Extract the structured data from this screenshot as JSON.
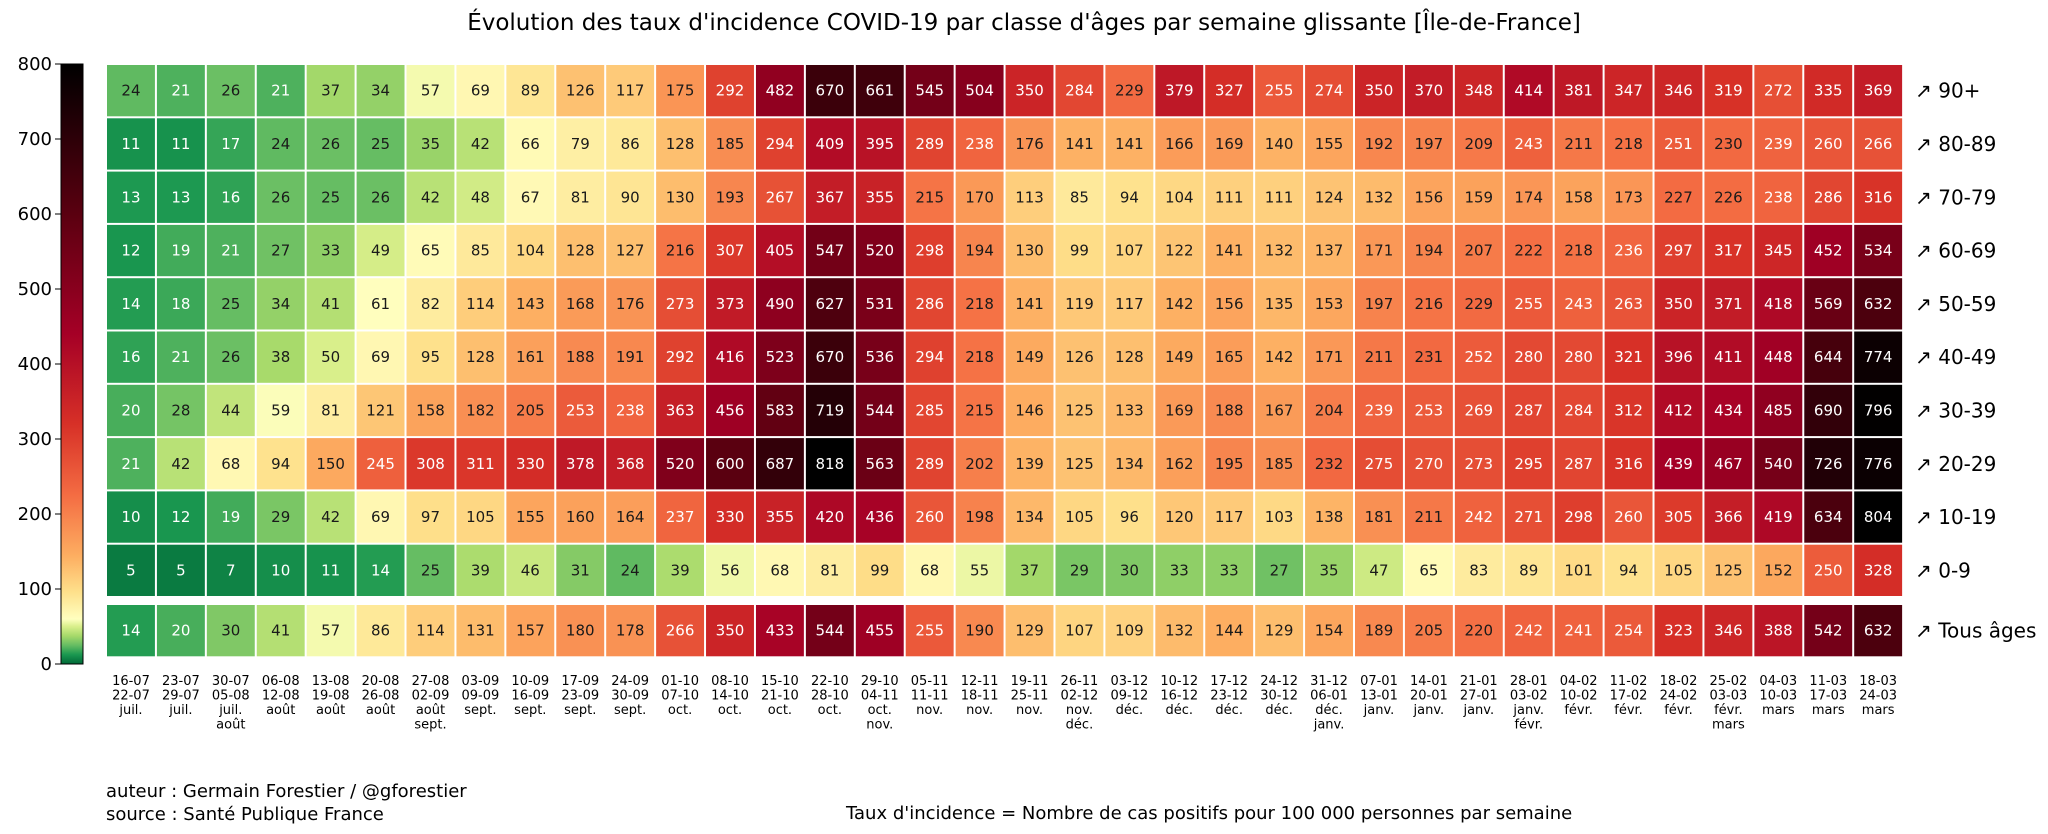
{
  "chart_data": {
    "type": "heatmap",
    "title": "Évolution des taux d'incidence COVID-19 par classe d'âges par semaine glissante [Île-de-France]",
    "colorbar": {
      "min": 0,
      "max": 800,
      "ticks": [
        "0",
        "100",
        "200",
        "300",
        "400",
        "500",
        "600",
        "700",
        "800"
      ]
    },
    "columns": [
      [
        "16-07",
        "22-07",
        "juil."
      ],
      [
        "23-07",
        "29-07",
        "juil."
      ],
      [
        "30-07",
        "05-08",
        "juil.",
        "août"
      ],
      [
        "06-08",
        "12-08",
        "août"
      ],
      [
        "13-08",
        "19-08",
        "août"
      ],
      [
        "20-08",
        "26-08",
        "août"
      ],
      [
        "27-08",
        "02-09",
        "août",
        "sept."
      ],
      [
        "03-09",
        "09-09",
        "sept."
      ],
      [
        "10-09",
        "16-09",
        "sept."
      ],
      [
        "17-09",
        "23-09",
        "sept."
      ],
      [
        "24-09",
        "30-09",
        "sept."
      ],
      [
        "01-10",
        "07-10",
        "oct."
      ],
      [
        "08-10",
        "14-10",
        "oct."
      ],
      [
        "15-10",
        "21-10",
        "oct."
      ],
      [
        "22-10",
        "28-10",
        "oct."
      ],
      [
        "29-10",
        "04-11",
        "oct.",
        "nov."
      ],
      [
        "05-11",
        "11-11",
        "nov."
      ],
      [
        "12-11",
        "18-11",
        "nov."
      ],
      [
        "19-11",
        "25-11",
        "nov."
      ],
      [
        "26-11",
        "02-12",
        "nov.",
        "déc."
      ],
      [
        "03-12",
        "09-12",
        "déc."
      ],
      [
        "10-12",
        "16-12",
        "déc."
      ],
      [
        "17-12",
        "23-12",
        "déc."
      ],
      [
        "24-12",
        "30-12",
        "déc."
      ],
      [
        "31-12",
        "06-01",
        "déc.",
        "janv."
      ],
      [
        "07-01",
        "13-01",
        "janv."
      ],
      [
        "14-01",
        "20-01",
        "janv."
      ],
      [
        "21-01",
        "27-01",
        "janv."
      ],
      [
        "28-01",
        "03-02",
        "janv.",
        "févr."
      ],
      [
        "04-02",
        "10-02",
        "févr."
      ],
      [
        "11-02",
        "17-02",
        "févr."
      ],
      [
        "18-02",
        "24-02",
        "févr."
      ],
      [
        "25-02",
        "03-03",
        "févr.",
        "mars"
      ],
      [
        "04-03",
        "10-03",
        "mars"
      ],
      [
        "11-03",
        "17-03",
        "mars"
      ],
      [
        "18-03",
        "24-03",
        "mars"
      ]
    ],
    "rows": [
      {
        "label": "↗ 90+",
        "values": [
          24,
          21,
          26,
          21,
          37,
          34,
          57,
          69,
          89,
          126,
          117,
          175,
          292,
          482,
          670,
          661,
          545,
          504,
          350,
          284,
          229,
          379,
          327,
          255,
          274,
          350,
          370,
          348,
          414,
          381,
          347,
          346,
          319,
          272,
          335,
          369
        ]
      },
      {
        "label": "↗ 80-89",
        "values": [
          11,
          11,
          17,
          24,
          26,
          25,
          35,
          42,
          66,
          79,
          86,
          128,
          185,
          294,
          409,
          395,
          289,
          238,
          176,
          141,
          141,
          166,
          169,
          140,
          155,
          192,
          197,
          209,
          243,
          211,
          218,
          251,
          230,
          239,
          260,
          266
        ]
      },
      {
        "label": "↗ 70-79",
        "values": [
          13,
          13,
          16,
          26,
          25,
          26,
          42,
          48,
          67,
          81,
          90,
          130,
          193,
          267,
          367,
          355,
          215,
          170,
          113,
          85,
          94,
          104,
          111,
          111,
          124,
          132,
          156,
          159,
          174,
          158,
          173,
          227,
          226,
          238,
          286,
          316
        ]
      },
      {
        "label": "↗ 60-69",
        "values": [
          12,
          19,
          21,
          27,
          33,
          49,
          65,
          85,
          104,
          128,
          127,
          216,
          307,
          405,
          547,
          520,
          298,
          194,
          130,
          99,
          107,
          122,
          141,
          132,
          137,
          171,
          194,
          207,
          222,
          218,
          236,
          297,
          317,
          345,
          452,
          534
        ]
      },
      {
        "label": "↗ 50-59",
        "values": [
          14,
          18,
          25,
          34,
          41,
          61,
          82,
          114,
          143,
          168,
          176,
          273,
          373,
          490,
          627,
          531,
          286,
          218,
          141,
          119,
          117,
          142,
          156,
          135,
          153,
          197,
          216,
          229,
          255,
          243,
          263,
          350,
          371,
          418,
          569,
          632
        ]
      },
      {
        "label": "↗ 40-49",
        "values": [
          16,
          21,
          26,
          38,
          50,
          69,
          95,
          128,
          161,
          188,
          191,
          292,
          416,
          523,
          670,
          536,
          294,
          218,
          149,
          126,
          128,
          149,
          165,
          142,
          171,
          211,
          231,
          252,
          280,
          280,
          321,
          396,
          411,
          448,
          644,
          774
        ]
      },
      {
        "label": "↗ 30-39",
        "values": [
          20,
          28,
          44,
          59,
          81,
          121,
          158,
          182,
          205,
          253,
          238,
          363,
          456,
          583,
          719,
          544,
          285,
          215,
          146,
          125,
          133,
          169,
          188,
          167,
          204,
          239,
          253,
          269,
          287,
          284,
          312,
          412,
          434,
          485,
          690,
          796
        ]
      },
      {
        "label": "↗ 20-29",
        "values": [
          21,
          42,
          68,
          94,
          150,
          245,
          308,
          311,
          330,
          378,
          368,
          520,
          600,
          687,
          818,
          563,
          289,
          202,
          139,
          125,
          134,
          162,
          195,
          185,
          232,
          275,
          270,
          273,
          295,
          287,
          316,
          439,
          467,
          540,
          726,
          776
        ]
      },
      {
        "label": "↗ 10-19",
        "values": [
          10,
          12,
          19,
          29,
          42,
          69,
          97,
          105,
          155,
          160,
          164,
          237,
          330,
          355,
          420,
          436,
          260,
          198,
          134,
          105,
          96,
          120,
          117,
          103,
          138,
          181,
          211,
          242,
          271,
          298,
          260,
          305,
          366,
          419,
          634,
          804
        ]
      },
      {
        "label": "↗ 0-9",
        "values": [
          5,
          5,
          7,
          10,
          11,
          14,
          25,
          39,
          46,
          31,
          24,
          39,
          56,
          68,
          81,
          99,
          68,
          55,
          37,
          29,
          30,
          33,
          33,
          27,
          35,
          47,
          65,
          83,
          89,
          101,
          94,
          105,
          125,
          152,
          250,
          328
        ]
      }
    ],
    "total": {
      "label": "↗ Tous âges",
      "values": [
        14,
        20,
        30,
        41,
        57,
        86,
        114,
        131,
        157,
        180,
        178,
        266,
        350,
        433,
        544,
        455,
        255,
        190,
        129,
        107,
        109,
        132,
        144,
        129,
        154,
        189,
        205,
        220,
        242,
        241,
        254,
        323,
        346,
        388,
        542,
        632
      ]
    }
  },
  "footer": {
    "author": "auteur : Germain Forestier / @gforestier",
    "source": "source : Santé Publique France",
    "note": "Taux d'incidence = Nombre de cas positifs pour 100 000 personnes par semaine"
  }
}
